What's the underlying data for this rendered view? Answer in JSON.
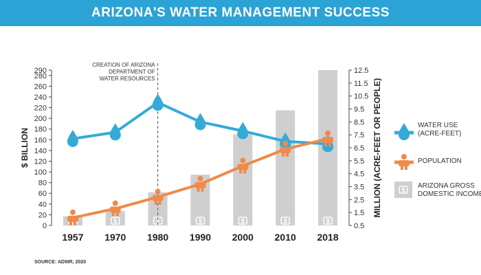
{
  "chart_data": {
    "type": "bar",
    "title": "ARIZONA'S WATER MANAGEMENT SUCCESS",
    "categories": [
      "1957",
      "1970",
      "1980",
      "1990",
      "2000",
      "2010",
      "2018"
    ],
    "series": [
      {
        "name": "ARIZONA GROSS DOMESTIC INCOME",
        "type": "bar",
        "axis": "left",
        "values": [
          17,
          27,
          62,
          95,
          170,
          215,
          290
        ],
        "color": "#cfcfcf",
        "icon": "dollar-icon"
      },
      {
        "name": "WATER USE (ACRE-FEET)",
        "type": "line",
        "axis": "right",
        "values": [
          7.2,
          7.7,
          10.0,
          8.5,
          7.8,
          7.0,
          6.8
        ],
        "color": "#35aad8",
        "icon": "water-drop-icon"
      },
      {
        "name": "POPULATION",
        "type": "line",
        "axis": "right",
        "values": [
          1.1,
          1.8,
          2.7,
          3.7,
          5.1,
          6.4,
          7.2
        ],
        "color": "#f08a4b",
        "icon": "person-icon"
      }
    ],
    "ylabel": "$ BILLION",
    "y2label": "MILLION (ACRE-FEET OR PEOPLE)",
    "ylim": [
      0,
      290
    ],
    "y2lim": [
      0.5,
      12.5
    ],
    "yticks": [
      0,
      20,
      40,
      60,
      80,
      100,
      120,
      140,
      160,
      180,
      200,
      220,
      240,
      260,
      280,
      290
    ],
    "y2ticks": [
      0.5,
      1.5,
      2.5,
      3.5,
      4.5,
      5.5,
      6.5,
      7.5,
      8.5,
      9.5,
      10.5,
      11.5,
      12.5
    ],
    "annotation": {
      "category": "1980",
      "lines": [
        "CREATION OF ARIZONA",
        "DEPARTMENT OF",
        "WATER RESOURCES"
      ]
    },
    "legend_position": "right",
    "source": "SOURCE: ADWR, 2020"
  }
}
